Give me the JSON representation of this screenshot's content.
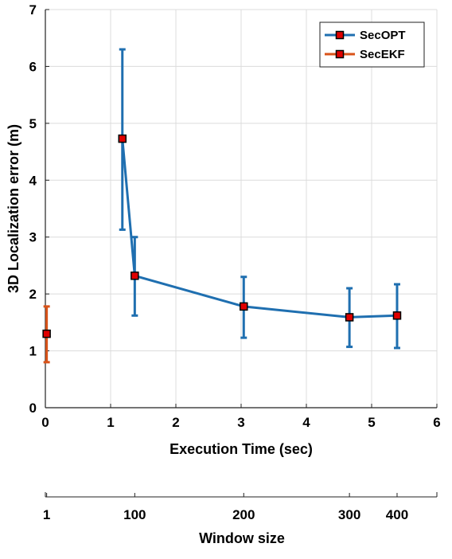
{
  "chart_data": [
    {
      "type": "line",
      "xlabel": "Execution Time (sec)",
      "ylabel": "3D Localization error (m)",
      "xlim": [
        0,
        6
      ],
      "ylim": [
        0,
        7
      ],
      "xticks": [
        "0",
        "1",
        "2",
        "3",
        "4",
        "5",
        "6"
      ],
      "yticks": [
        "0",
        "1",
        "2",
        "3",
        "4",
        "5",
        "6",
        "7"
      ],
      "grid": true,
      "legend_position": "top-right",
      "series": [
        {
          "name": "SecOPT",
          "color": "#1f6fb0",
          "marker": "square",
          "marker_color": "#e00000",
          "x": [
            1.18,
            1.37,
            3.04,
            4.66,
            5.39
          ],
          "y": [
            4.73,
            2.32,
            1.78,
            1.59,
            1.62
          ],
          "err_low": [
            3.13,
            1.62,
            1.23,
            1.07,
            1.05
          ],
          "err_high": [
            6.3,
            3.0,
            2.3,
            2.1,
            2.17
          ]
        },
        {
          "name": "SecEKF",
          "color": "#d95319",
          "marker": "square",
          "marker_color": "#e00000",
          "x": [
            0.02
          ],
          "y": [
            1.3
          ],
          "err_low": [
            0.8
          ],
          "err_high": [
            1.78
          ]
        }
      ]
    },
    {
      "type": "axis",
      "xlabel": "Window size",
      "tick_labels": [
        "1",
        "100",
        "200",
        "300",
        "400"
      ],
      "tick_positions_exec_time": [
        0.02,
        1.37,
        3.04,
        4.66,
        5.39
      ]
    }
  ]
}
